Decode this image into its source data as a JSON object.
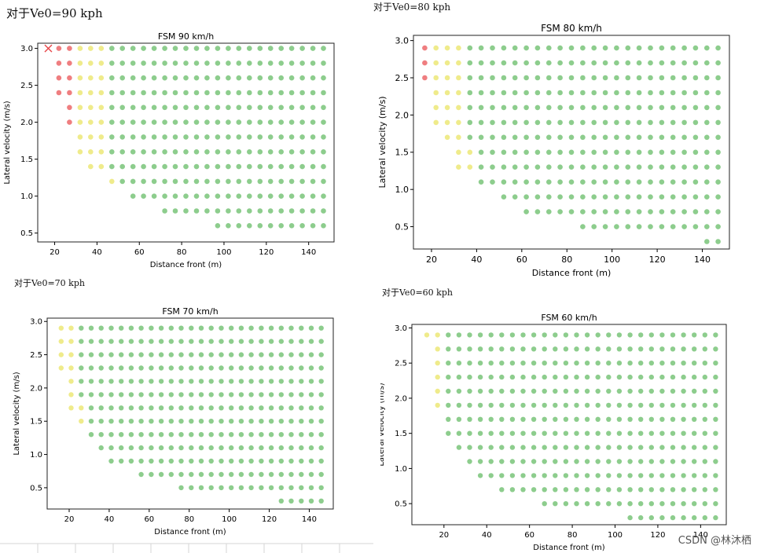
{
  "captions": [
    "对于Ve0=90 kph",
    "对于Ve0=80 kph",
    "对于Ve0=70 kph",
    "对于Ve0=60 kph"
  ],
  "watermark": "CSDN @林沐栖",
  "colors": {
    "green": "#5cb85c",
    "yellow": "#e8e25a",
    "red": "#e8474a",
    "frame": "#222222"
  },
  "chart_data": [
    {
      "type": "scatter",
      "title": "FSM 90 km/h",
      "xlabel": "Distance front (m)",
      "ylabel": "Lateral velocity (m/s)",
      "xlim": [
        12,
        152
      ],
      "ylim": [
        0.38,
        3.07
      ],
      "xticks": [
        20,
        40,
        60,
        80,
        100,
        120,
        140
      ],
      "yticks": [
        0.5,
        1.0,
        1.5,
        2.0,
        2.5,
        3.0
      ],
      "tick_labels_x": [
        "20",
        "40",
        "60",
        "80",
        "100",
        "120",
        "140"
      ],
      "tick_labels_y": [
        "0.5",
        "1.0",
        "1.5",
        "2.0",
        "2.5",
        "3.0"
      ],
      "x_grid": [
        17,
        22,
        27,
        32,
        37,
        42,
        47,
        52,
        57,
        62,
        67,
        72,
        77,
        82,
        87,
        92,
        97,
        102,
        107,
        112,
        117,
        122,
        127,
        132,
        137,
        142,
        147
      ],
      "rows": [
        {
          "y": 3.0,
          "start_x": 22,
          "red_until": 27,
          "yellow_until": 42,
          "marker_x": 17
        },
        {
          "y": 2.8,
          "start_x": 22,
          "red_until": 27,
          "yellow_until": 42
        },
        {
          "y": 2.6,
          "start_x": 22,
          "red_until": 27,
          "yellow_until": 42
        },
        {
          "y": 2.4,
          "start_x": 22,
          "red_until": 27,
          "yellow_until": 42
        },
        {
          "y": 2.2,
          "start_x": 27,
          "red_until": 27,
          "yellow_until": 42
        },
        {
          "y": 2.0,
          "start_x": 27,
          "red_until": 27,
          "yellow_until": 42
        },
        {
          "y": 1.8,
          "start_x": 32,
          "red_until": null,
          "yellow_until": 42
        },
        {
          "y": 1.6,
          "start_x": 32,
          "red_until": null,
          "yellow_until": 42
        },
        {
          "y": 1.4,
          "start_x": 37,
          "red_until": null,
          "yellow_until": 42
        },
        {
          "y": 1.2,
          "start_x": 47,
          "red_until": null,
          "yellow_until": 47
        },
        {
          "y": 1.0,
          "start_x": 57,
          "red_until": null,
          "yellow_until": null
        },
        {
          "y": 0.8,
          "start_x": 72,
          "red_until": null,
          "yellow_until": null
        },
        {
          "y": 0.6,
          "start_x": 97,
          "red_until": null,
          "yellow_until": null
        }
      ]
    },
    {
      "type": "scatter",
      "title": "FSM 80 km/h",
      "xlabel": "Distance front (m)",
      "ylabel": "Lateral velocity (m/s)",
      "xlim": [
        12,
        152
      ],
      "ylim": [
        0.2,
        3.07
      ],
      "xticks": [
        20,
        40,
        60,
        80,
        100,
        120,
        140
      ],
      "yticks": [
        0.5,
        1.0,
        1.5,
        2.0,
        2.5,
        3.0
      ],
      "tick_labels_x": [
        "20",
        "40",
        "60",
        "80",
        "100",
        "120",
        "140"
      ],
      "tick_labels_y": [
        "0.5",
        "1.0",
        "1.5",
        "2.0",
        "2.5",
        "3.0"
      ],
      "x_grid": [
        17,
        22,
        27,
        32,
        37,
        42,
        47,
        52,
        57,
        62,
        67,
        72,
        77,
        82,
        87,
        92,
        97,
        102,
        107,
        112,
        117,
        122,
        127,
        132,
        137,
        142,
        147
      ],
      "rows": [
        {
          "y": 2.9,
          "start_x": 17,
          "red_until": 17,
          "yellow_until": 32
        },
        {
          "y": 2.7,
          "start_x": 17,
          "red_until": 17,
          "yellow_until": 32
        },
        {
          "y": 2.5,
          "start_x": 17,
          "red_until": 17,
          "yellow_until": 32
        },
        {
          "y": 2.3,
          "start_x": 22,
          "red_until": null,
          "yellow_until": 32
        },
        {
          "y": 2.1,
          "start_x": 22,
          "red_until": null,
          "yellow_until": 32
        },
        {
          "y": 1.9,
          "start_x": 22,
          "red_until": null,
          "yellow_until": 32
        },
        {
          "y": 1.7,
          "start_x": 27,
          "red_until": null,
          "yellow_until": 32
        },
        {
          "y": 1.5,
          "start_x": 32,
          "red_until": null,
          "yellow_until": 37
        },
        {
          "y": 1.3,
          "start_x": 32,
          "red_until": null,
          "yellow_until": 37
        },
        {
          "y": 1.1,
          "start_x": 42,
          "red_until": null,
          "yellow_until": null
        },
        {
          "y": 0.9,
          "start_x": 52,
          "red_until": null,
          "yellow_until": null
        },
        {
          "y": 0.7,
          "start_x": 62,
          "red_until": null,
          "yellow_until": null
        },
        {
          "y": 0.5,
          "start_x": 87,
          "red_until": null,
          "yellow_until": null
        },
        {
          "y": 0.3,
          "start_x": 142,
          "red_until": null,
          "yellow_until": null
        }
      ]
    },
    {
      "type": "scatter",
      "title": "FSM 70 km/h",
      "xlabel": "Distance front (m)",
      "ylabel": "Lateral velocity (m/s)",
      "xlim": [
        9,
        152
      ],
      "ylim": [
        0.18,
        3.05
      ],
      "xticks": [
        20,
        40,
        60,
        80,
        100,
        120,
        140
      ],
      "yticks": [
        0.5,
        1.0,
        1.5,
        2.0,
        2.5,
        3.0
      ],
      "tick_labels_x": [
        "20",
        "40",
        "60",
        "80",
        "100",
        "120",
        "140"
      ],
      "tick_labels_y": [
        "0.5",
        "1.0",
        "1.5",
        "2.0",
        "2.5",
        "3.0"
      ],
      "x_grid": [
        16,
        21,
        26,
        31,
        36,
        41,
        46,
        51,
        56,
        61,
        66,
        71,
        76,
        81,
        86,
        91,
        96,
        101,
        106,
        111,
        116,
        121,
        126,
        131,
        136,
        141,
        146
      ],
      "rows": [
        {
          "y": 2.9,
          "start_x": 16,
          "red_until": null,
          "yellow_until": 21
        },
        {
          "y": 2.7,
          "start_x": 16,
          "red_until": null,
          "yellow_until": 21
        },
        {
          "y": 2.5,
          "start_x": 16,
          "red_until": null,
          "yellow_until": 21
        },
        {
          "y": 2.3,
          "start_x": 16,
          "red_until": null,
          "yellow_until": 21
        },
        {
          "y": 2.1,
          "start_x": 21,
          "red_until": null,
          "yellow_until": 21
        },
        {
          "y": 1.9,
          "start_x": 21,
          "red_until": null,
          "yellow_until": 21
        },
        {
          "y": 1.7,
          "start_x": 21,
          "red_until": null,
          "yellow_until": 26
        },
        {
          "y": 1.5,
          "start_x": 26,
          "red_until": null,
          "yellow_until": 26
        },
        {
          "y": 1.3,
          "start_x": 31,
          "red_until": null,
          "yellow_until": null
        },
        {
          "y": 1.1,
          "start_x": 36,
          "red_until": null,
          "yellow_until": null
        },
        {
          "y": 0.9,
          "start_x": 41,
          "red_until": null,
          "yellow_until": null
        },
        {
          "y": 0.7,
          "start_x": 56,
          "red_until": null,
          "yellow_until": null
        },
        {
          "y": 0.5,
          "start_x": 76,
          "red_until": null,
          "yellow_until": null
        },
        {
          "y": 0.3,
          "start_x": 126,
          "red_until": null,
          "yellow_until": null
        }
      ]
    },
    {
      "type": "scatter",
      "title": "FSM 60 km/h",
      "xlabel": "Distance front (m)",
      "ylabel": "Lateral velocity (m/s)",
      "xlim": [
        5,
        152
      ],
      "ylim": [
        0.2,
        3.05
      ],
      "xticks": [
        20,
        40,
        60,
        80,
        100,
        120,
        140
      ],
      "yticks": [
        0.5,
        1.0,
        1.5,
        2.0,
        2.5,
        3.0
      ],
      "tick_labels_x": [
        "20",
        "40",
        "60",
        "80",
        "100",
        "120",
        "140"
      ],
      "tick_labels_y": [
        "0.5",
        "1.0",
        "1.5",
        "2.0",
        "2.5",
        "3.0"
      ],
      "x_grid": [
        12,
        17,
        22,
        27,
        32,
        37,
        42,
        47,
        52,
        57,
        62,
        67,
        72,
        77,
        82,
        87,
        92,
        97,
        102,
        107,
        112,
        117,
        122,
        127,
        132,
        137,
        142,
        147
      ],
      "rows": [
        {
          "y": 2.9,
          "start_x": 12,
          "red_until": null,
          "yellow_until": 17
        },
        {
          "y": 2.7,
          "start_x": 17,
          "red_until": null,
          "yellow_until": 17
        },
        {
          "y": 2.5,
          "start_x": 17,
          "red_until": null,
          "yellow_until": 17
        },
        {
          "y": 2.3,
          "start_x": 17,
          "red_until": null,
          "yellow_until": 17
        },
        {
          "y": 2.1,
          "start_x": 17,
          "red_until": null,
          "yellow_until": 17
        },
        {
          "y": 1.9,
          "start_x": 17,
          "red_until": null,
          "yellow_until": 17
        },
        {
          "y": 1.7,
          "start_x": 22,
          "red_until": null,
          "yellow_until": null
        },
        {
          "y": 1.5,
          "start_x": 22,
          "red_until": null,
          "yellow_until": null
        },
        {
          "y": 1.3,
          "start_x": 27,
          "red_until": null,
          "yellow_until": null
        },
        {
          "y": 1.1,
          "start_x": 32,
          "red_until": null,
          "yellow_until": null
        },
        {
          "y": 0.9,
          "start_x": 37,
          "red_until": null,
          "yellow_until": null
        },
        {
          "y": 0.7,
          "start_x": 47,
          "red_until": null,
          "yellow_until": null
        },
        {
          "y": 0.5,
          "start_x": 67,
          "red_until": null,
          "yellow_until": null
        },
        {
          "y": 0.3,
          "start_x": 107,
          "red_until": null,
          "yellow_until": null
        }
      ]
    }
  ]
}
